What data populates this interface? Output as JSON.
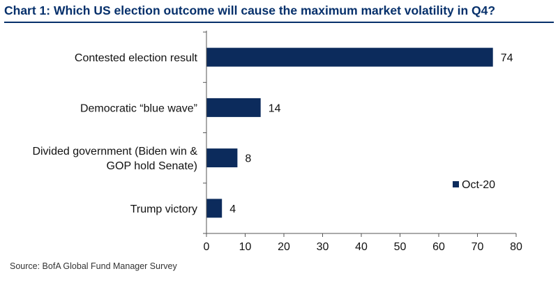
{
  "title": "Chart 1: Which US election outcome will cause the maximum market volatility in Q4?",
  "source": "Source:  BofA Global Fund Manager Survey",
  "chart_data": {
    "type": "bar",
    "orientation": "horizontal",
    "categories": [
      [
        "Contested election result"
      ],
      [
        "Democratic “blue wave”"
      ],
      [
        "Divided government (Biden win &",
        "GOP hold Senate)"
      ],
      [
        "Trump victory"
      ]
    ],
    "series": [
      {
        "name": "Oct-20",
        "values": [
          74,
          14,
          8,
          4
        ],
        "color": "#0c2b5c"
      }
    ],
    "data_labels": [
      "74",
      "14",
      "8",
      "4"
    ],
    "xlim": [
      0,
      80
    ],
    "xticks": [
      0,
      10,
      20,
      30,
      40,
      50,
      60,
      70,
      80
    ],
    "grid": false,
    "legend_position": "bottom-right"
  }
}
